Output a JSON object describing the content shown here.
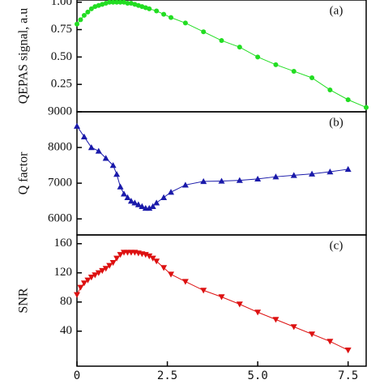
{
  "chart_data": [
    {
      "type": "line",
      "marker": "circle",
      "annotation": "(a)",
      "ylabel": "QEPAS signal, a.u",
      "xlim": [
        0,
        8
      ],
      "ylim": [
        0,
        1.02
      ],
      "yticks": [
        0.25,
        {
          "value": 0.5,
          "label": "0.50"
        },
        0.75,
        {
          "value": 1,
          "label": "1.00"
        }
      ],
      "series": [
        {
          "name": "QEPAS signal",
          "color": "#22dd22",
          "x": [
            0,
            0.1,
            0.2,
            0.3,
            0.4,
            0.5,
            0.6,
            0.7,
            0.8,
            0.9,
            1.0,
            1.1,
            1.2,
            1.3,
            1.4,
            1.5,
            1.6,
            1.7,
            1.8,
            1.9,
            2.0,
            2.2,
            2.4,
            2.6,
            3.0,
            3.5,
            4.0,
            4.5,
            5.0,
            5.5,
            6.0,
            6.5,
            7.0,
            7.5,
            8.0
          ],
          "values": [
            0.8,
            0.84,
            0.88,
            0.91,
            0.94,
            0.96,
            0.97,
            0.98,
            0.99,
            1.0,
            1.0,
            1.0,
            1.0,
            1.0,
            0.99,
            0.99,
            0.98,
            0.97,
            0.96,
            0.95,
            0.94,
            0.92,
            0.89,
            0.86,
            0.81,
            0.73,
            0.65,
            0.59,
            0.5,
            0.43,
            0.37,
            0.31,
            0.2,
            0.11,
            0.04
          ]
        }
      ]
    },
    {
      "type": "line",
      "marker": "triangle-up",
      "annotation": "(b)",
      "ylabel": "Q factor",
      "xlim": [
        0,
        8
      ],
      "ylim": [
        5550,
        9000
      ],
      "yticks": [
        6000,
        7000,
        8000,
        9000
      ],
      "series": [
        {
          "name": "Q factor",
          "color": "#1a1aaa",
          "x": [
            0,
            0.2,
            0.4,
            0.6,
            0.8,
            1.0,
            1.1,
            1.2,
            1.3,
            1.4,
            1.5,
            1.6,
            1.7,
            1.8,
            1.9,
            2.0,
            2.1,
            2.2,
            2.4,
            2.6,
            3.0,
            3.5,
            4.0,
            4.5,
            5.0,
            5.5,
            6.0,
            6.5,
            7.0,
            7.5
          ],
          "values": [
            8600,
            8300,
            8000,
            7900,
            7700,
            7500,
            7250,
            6900,
            6700,
            6600,
            6500,
            6450,
            6400,
            6350,
            6300,
            6300,
            6350,
            6450,
            6600,
            6750,
            6950,
            7050,
            7060,
            7080,
            7120,
            7180,
            7220,
            7260,
            7320,
            7390
          ]
        }
      ]
    },
    {
      "type": "line",
      "marker": "triangle-down",
      "annotation": "(c)",
      "ylabel": "SNR",
      "xlim": [
        0,
        8
      ],
      "ylim": [
        -8,
        172
      ],
      "yticks": [
        40,
        80,
        120,
        160
      ],
      "xticks": [
        0,
        2.5,
        {
          "value": 5,
          "label": "5.0"
        },
        7.5
      ],
      "series": [
        {
          "name": "SNR",
          "color": "#dd1111",
          "x": [
            0,
            0.1,
            0.2,
            0.3,
            0.4,
            0.5,
            0.6,
            0.7,
            0.8,
            0.9,
            1.0,
            1.1,
            1.2,
            1.3,
            1.4,
            1.5,
            1.6,
            1.7,
            1.8,
            1.9,
            2.0,
            2.1,
            2.2,
            2.4,
            2.6,
            3.0,
            3.5,
            4.0,
            4.5,
            5.0,
            5.5,
            6.0,
            6.5,
            7.0,
            7.5
          ],
          "values": [
            90,
            100,
            106,
            110,
            114,
            117,
            120,
            123,
            126,
            130,
            134,
            140,
            145,
            148,
            148,
            148,
            148,
            147,
            146,
            145,
            143,
            140,
            136,
            127,
            118,
            108,
            96,
            87,
            77,
            66,
            56,
            46,
            36,
            26,
            14
          ]
        }
      ]
    }
  ]
}
